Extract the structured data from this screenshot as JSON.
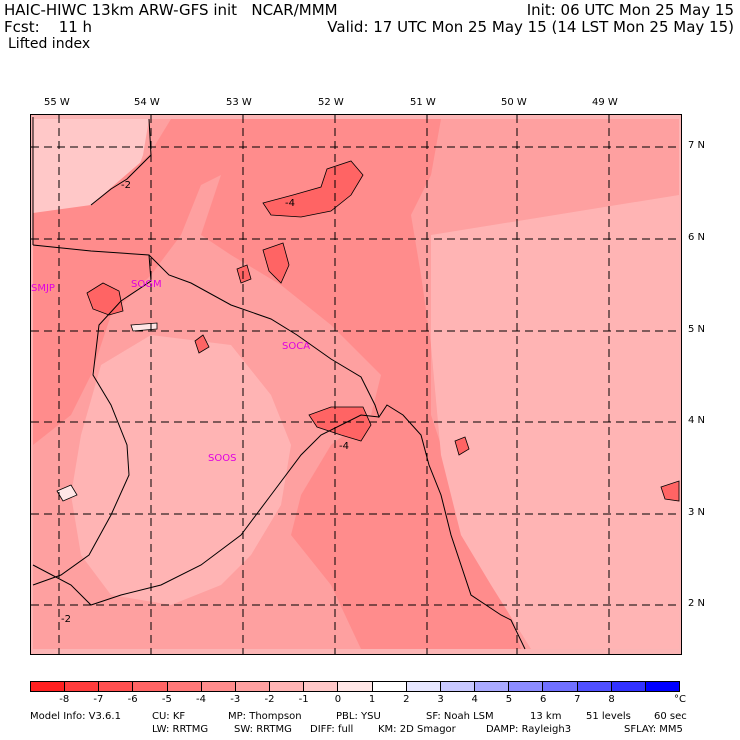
{
  "header": {
    "line1_left": "HAIC-HIWC 13km ARW-GFS init   NCAR/MMM",
    "line1_right": "Init: 06 UTC Mon 25 May 15",
    "line2_left": "Fcst:    11 h",
    "line2_right": "Valid: 17 UTC Mon 25 May 15 (14 LST Mon 25 May 15)",
    "line3_left": "Lifted index"
  },
  "map": {
    "longitude_labels": [
      "55 W",
      "54 W",
      "53 W",
      "52 W",
      "51 W",
      "50 W",
      "49 W"
    ],
    "latitude_labels": [
      "7 N",
      "6 N",
      "5 N",
      "4 N",
      "3 N",
      "2 N"
    ],
    "stations": [
      "SMJP",
      "SOGM",
      "SOCA",
      "SOOS"
    ],
    "contour_labels": [
      "-2",
      "-4",
      "-4",
      "-2"
    ]
  },
  "colorbar": {
    "colors": [
      "#ff2020",
      "#ff3c3c",
      "#ff5050",
      "#ff6464",
      "#ff7878",
      "#ff8c8c",
      "#fea0a0",
      "#ffb4b4",
      "#ffc8c8",
      "#ffe6e6",
      "#ffffff",
      "#e6e6ff",
      "#c8c8ff",
      "#aaaaff",
      "#8c8cff",
      "#7070ff",
      "#5050ff",
      "#3232ff",
      "#0000ff"
    ],
    "ticks": [
      "-8",
      "-7",
      "-6",
      "-5",
      "-4",
      "-3",
      "-2",
      "-1",
      "0",
      "1",
      "2",
      "3",
      "4",
      "5",
      "6",
      "7",
      "8"
    ],
    "unit": "°C"
  },
  "footer": {
    "line1": [
      "Model Info: V3.6.1",
      "CU: KF",
      "MP: Thompson",
      "PBL: YSU",
      "SF: Noah LSM",
      "13 km",
      "51 levels",
      "60 sec"
    ],
    "line2": [
      "LW: RRTMG",
      "SW: RRTMG",
      "DIFF: full",
      "KM: 2D Smagor",
      "DAMP: Rayleigh3",
      "SFLAY: MM5"
    ]
  }
}
